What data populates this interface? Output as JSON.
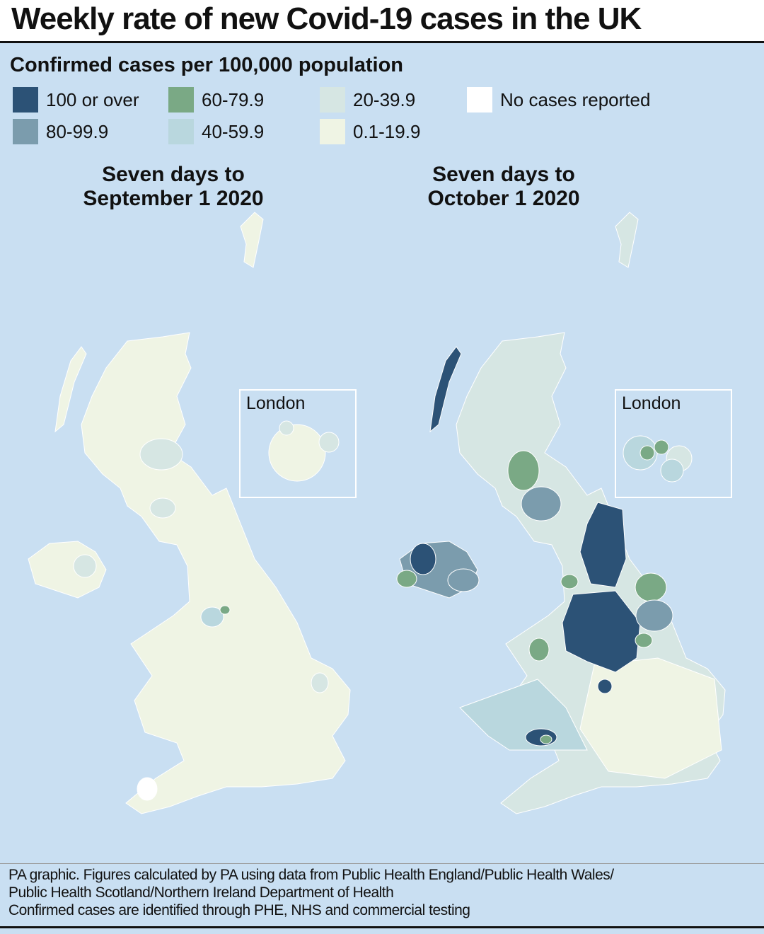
{
  "title": "Weekly rate of new Covid-19 cases in the UK",
  "legend": {
    "title": "Confirmed cases per 100,000 population",
    "items": [
      {
        "label": "100 or over",
        "color": "#2c5276"
      },
      {
        "label": "80-99.9",
        "color": "#7b9cad"
      },
      {
        "label": "60-79.9",
        "color": "#7aa985"
      },
      {
        "label": "40-59.9",
        "color": "#b9d7de"
      },
      {
        "label": "20-39.9",
        "color": "#d6e6e3"
      },
      {
        "label": "0.1-19.9",
        "color": "#eff4e4"
      },
      {
        "label": "No cases reported",
        "color": "#ffffff"
      }
    ]
  },
  "maps": [
    {
      "title_lines": [
        "Seven days to",
        "September 1 2020"
      ],
      "inset_label": "London"
    },
    {
      "title_lines": [
        "Seven days to",
        "October 1 2020"
      ],
      "inset_label": "London"
    }
  ],
  "footer": {
    "lines": [
      "PA graphic. Figures calculated by PA using data from Public Health England/Public Health Wales/",
      "Public Health Scotland/Northern Ireland Department of Health",
      "Confirmed cases are identified through PHE, NHS and commercial testing"
    ]
  }
}
